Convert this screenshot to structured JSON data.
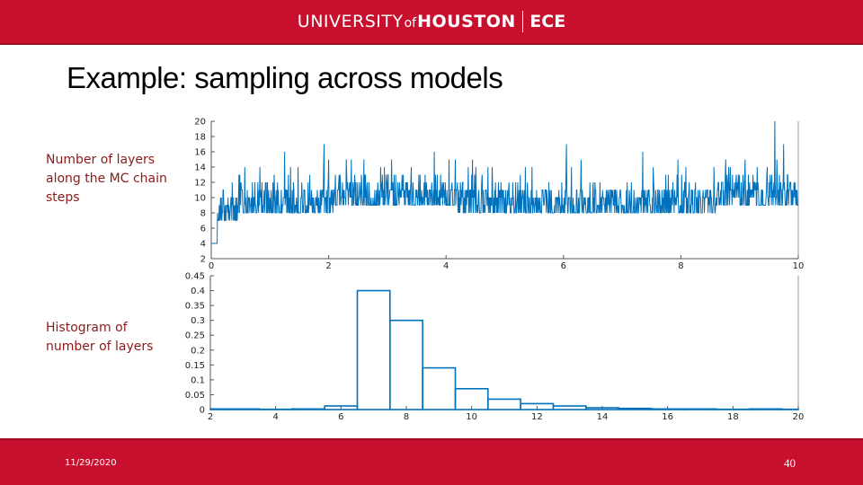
{
  "header": {
    "brand_university": "UNIVERSITY",
    "brand_of": "of",
    "brand_houston": "HOUSTON",
    "brand_dept": "ECE"
  },
  "slide": {
    "title": "Example: sampling across models",
    "label_trace": "Number of layers along the MC chain steps",
    "label_hist": "Histogram of number of layers"
  },
  "footer": {
    "date": "11/29/2020",
    "page_number": "40"
  },
  "colors": {
    "accent": "#c8102e",
    "series": "#0072bd",
    "label_text": "#8b1a1a"
  },
  "chart_data": [
    {
      "type": "line",
      "title": "",
      "xlabel": "",
      "ylabel": "",
      "xlim": [
        0,
        10
      ],
      "ylim": [
        2,
        20
      ],
      "x_ticks": [
        "0",
        "2",
        "4",
        "6",
        "8",
        "10"
      ],
      "y_ticks": [
        "2",
        "4",
        "6",
        "8",
        "10",
        "12",
        "14",
        "16",
        "18",
        "20"
      ],
      "grid": false,
      "series": [
        {
          "baseline_segments": [
            {
              "x_start": 0.0,
              "x_end": 0.1,
              "y": 4
            },
            {
              "x_start": 0.1,
              "x_end": 0.45,
              "y": 7
            },
            {
              "x_start": 0.45,
              "x_end": 2.1,
              "y": 8
            },
            {
              "x_start": 2.1,
              "x_end": 3.3,
              "y": 9
            },
            {
              "x_start": 3.3,
              "x_end": 4.2,
              "y": 9
            },
            {
              "x_start": 4.2,
              "x_end": 5.8,
              "y": 8
            },
            {
              "x_start": 5.8,
              "x_end": 8.6,
              "y": 8
            },
            {
              "x_start": 8.6,
              "x_end": 10.0,
              "y": 9
            }
          ],
          "peaks": [
            {
              "x": 1.25,
              "y": 16
            },
            {
              "x": 1.35,
              "y": 14
            },
            {
              "x": 1.92,
              "y": 17
            },
            {
              "x": 2.0,
              "y": 15
            },
            {
              "x": 2.6,
              "y": 15
            },
            {
              "x": 2.95,
              "y": 14
            },
            {
              "x": 3.8,
              "y": 16
            },
            {
              "x": 4.45,
              "y": 15
            },
            {
              "x": 5.35,
              "y": 14
            },
            {
              "x": 6.05,
              "y": 17
            },
            {
              "x": 6.3,
              "y": 15
            },
            {
              "x": 7.35,
              "y": 16
            },
            {
              "x": 7.95,
              "y": 15
            },
            {
              "x": 9.6,
              "y": 20
            },
            {
              "x": 9.75,
              "y": 17
            }
          ]
        }
      ]
    },
    {
      "type": "bar",
      "title": "",
      "xlabel": "",
      "ylabel": "",
      "xlim": [
        2,
        20
      ],
      "ylim": [
        0,
        0.45
      ],
      "x_ticks": [
        "2",
        "4",
        "6",
        "8",
        "10",
        "12",
        "14",
        "16",
        "18",
        "20"
      ],
      "y_ticks": [
        "0",
        "0.05",
        "0.1",
        "0.15",
        "0.2",
        "0.25",
        "0.3",
        "0.35",
        "0.4",
        "0.45"
      ],
      "grid": false,
      "categories": [
        "2",
        "3",
        "4",
        "5",
        "6",
        "7",
        "8",
        "9",
        "10",
        "11",
        "12",
        "13",
        "14",
        "15",
        "16",
        "17",
        "18",
        "19",
        "20"
      ],
      "values": [
        0.002,
        0.002,
        0.001,
        0.002,
        0.012,
        0.4,
        0.3,
        0.14,
        0.07,
        0.035,
        0.02,
        0.012,
        0.006,
        0.004,
        0.002,
        0.002,
        0.001,
        0.002,
        0.001
      ]
    }
  ]
}
